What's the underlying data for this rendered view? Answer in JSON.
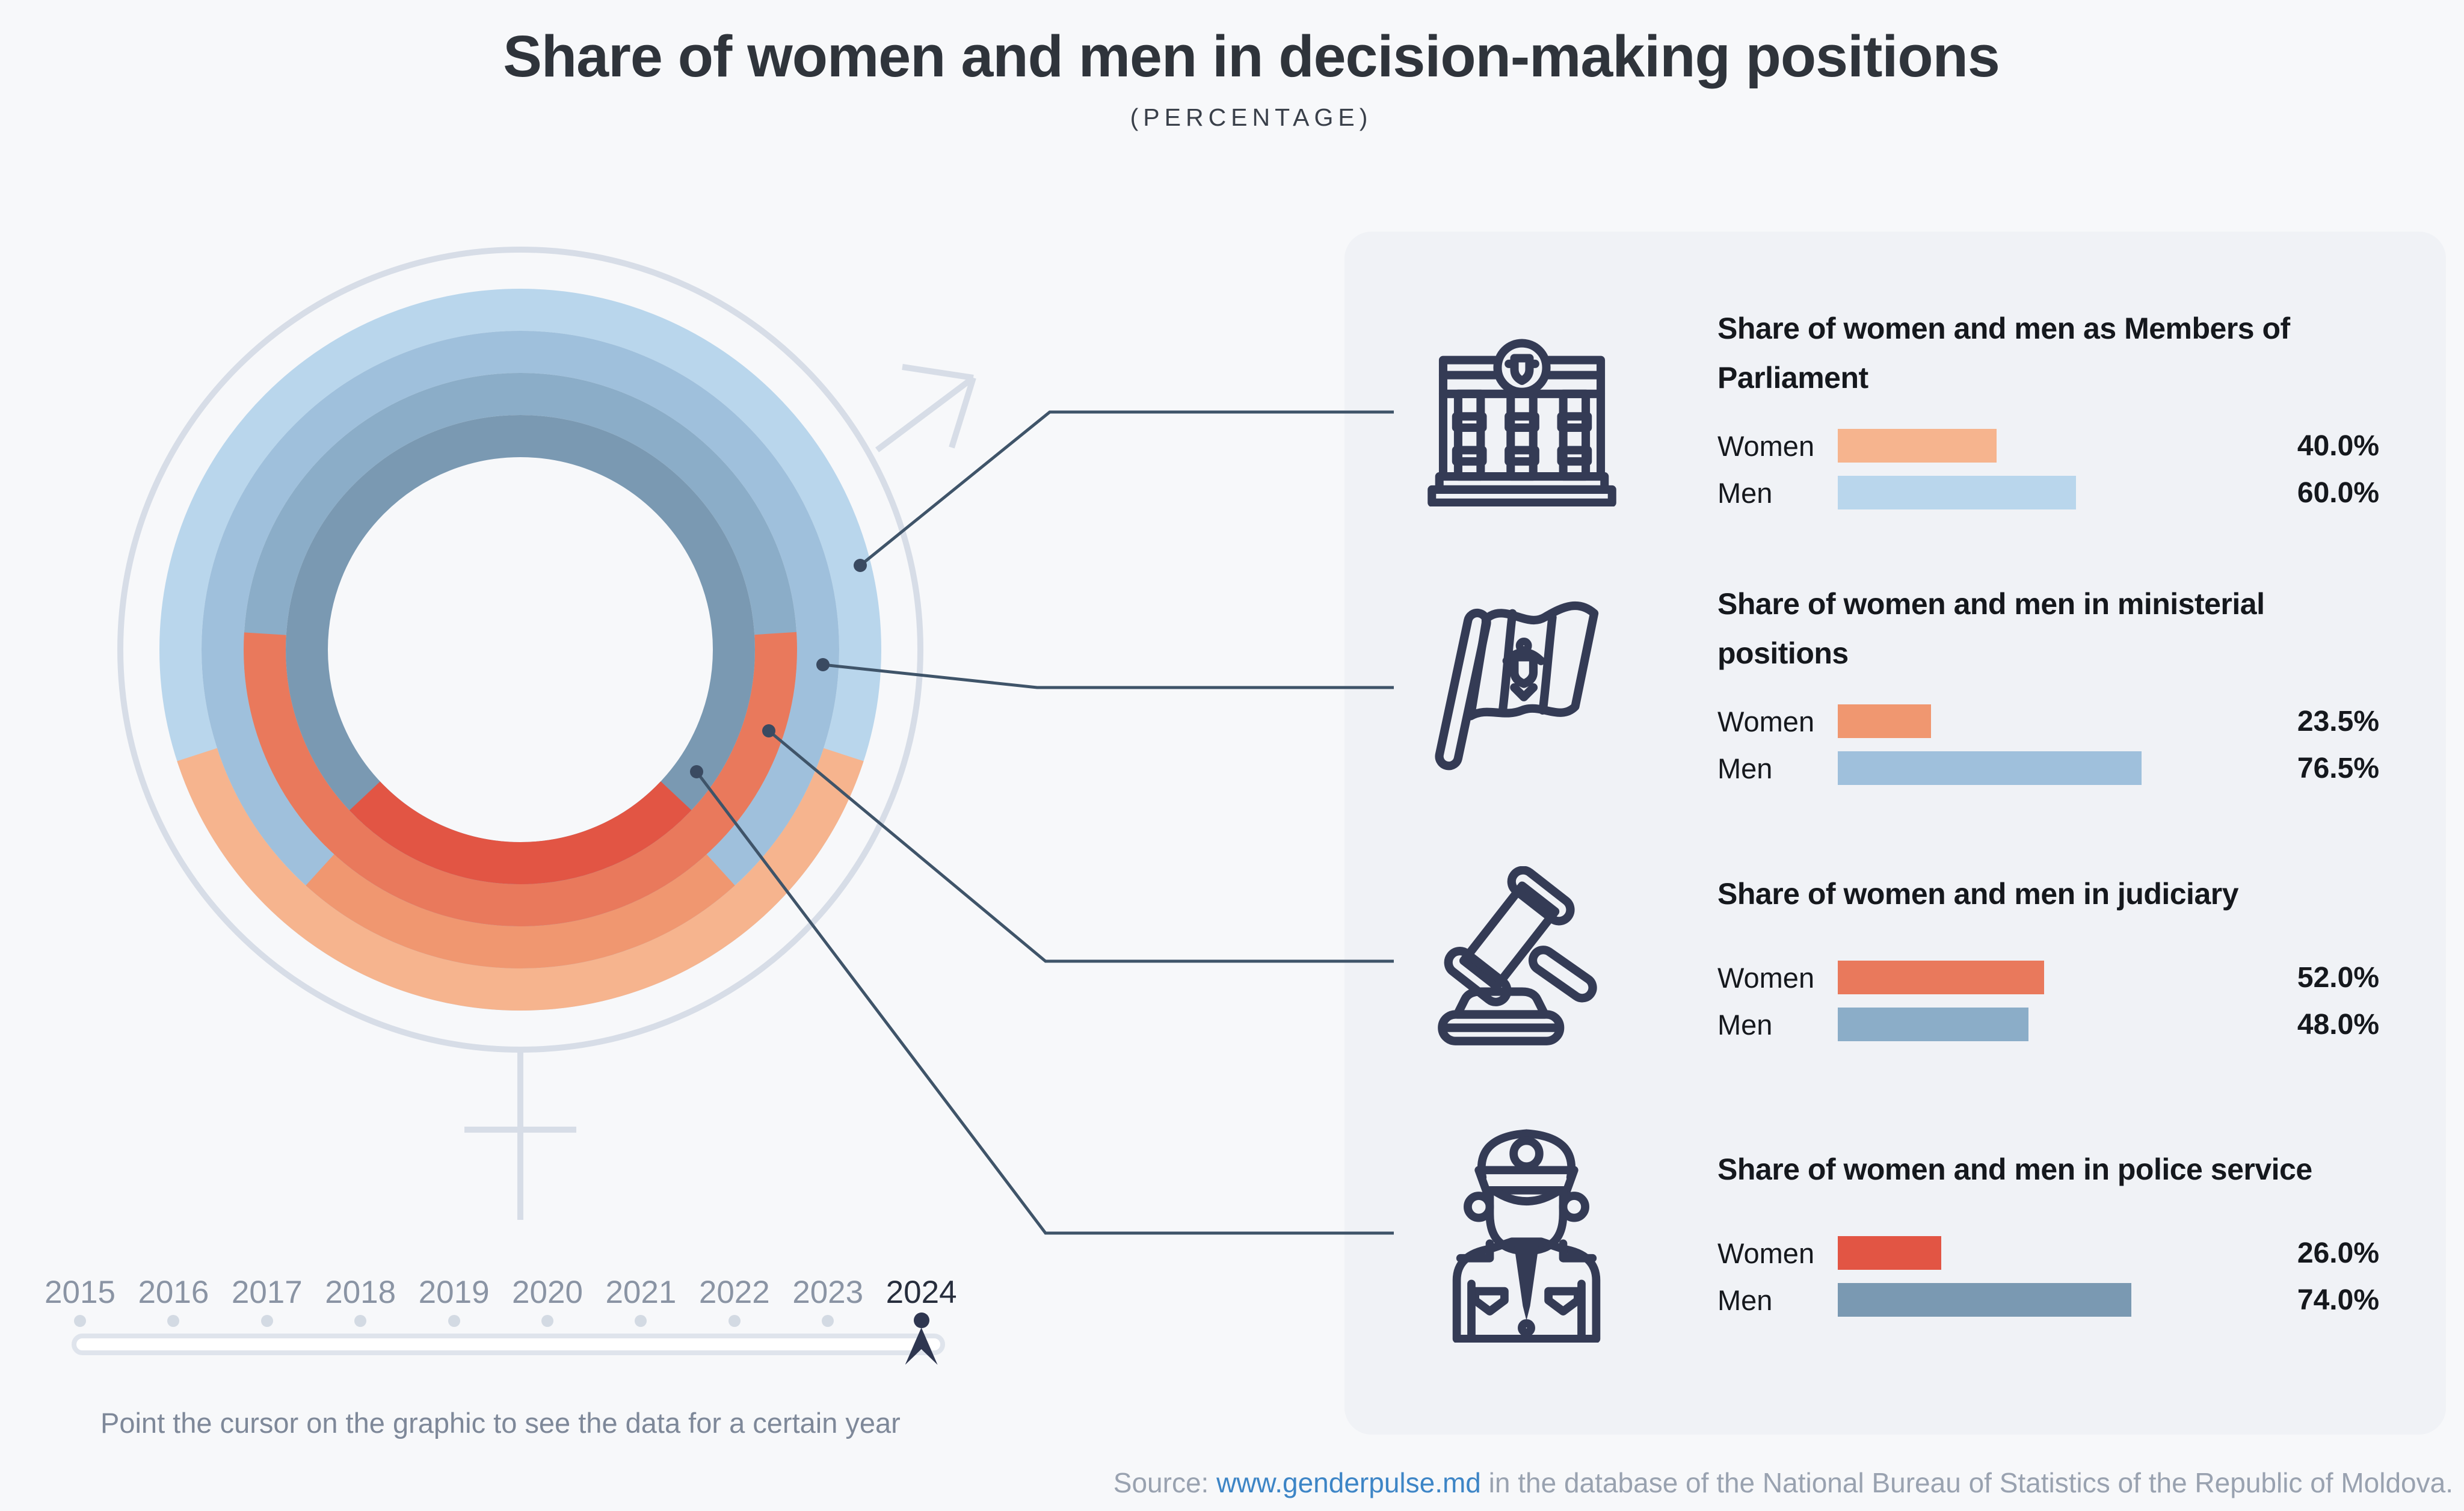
{
  "page": {
    "title": "Share of women and men in decision-making positions",
    "subtitle": "(PERCENTAGE)"
  },
  "labels": {
    "women": "Women",
    "men": "Men"
  },
  "colors": {
    "page_bg": "#f7f8fa",
    "panel_bg": "#f0f2f6",
    "icon_navy": "#343b55",
    "connector": "#3f5469",
    "symbol_gray": "#d7dde7",
    "selected_navy": "#2e3650",
    "muted_text": "#8a94a4",
    "link_blue": "#3d85c6"
  },
  "chart_data": {
    "type": "radial-multi-ring-donut-with-bars",
    "unit": "percent",
    "selected_year": "2024",
    "rings_outer_to_inner": [
      "parliament",
      "ministerial",
      "judiciary",
      "police"
    ],
    "women_segment_position": "centered-at-bottom",
    "categories": [
      {
        "id": "parliament",
        "title": "Share of women and men as Members of Parliament",
        "icon": "parliament-building-icon",
        "women": 40.0,
        "men": 60.0,
        "women_label": "40.0%",
        "men_label": "60.0%",
        "women_color": "#f6b48e",
        "men_color": "#b9d6ec"
      },
      {
        "id": "ministerial",
        "title": "Share of women and men in ministerial positions",
        "icon": "moldova-flag-icon",
        "women": 23.5,
        "men": 76.5,
        "women_label": "23.5%",
        "men_label": "76.5%",
        "women_color": "#f09770",
        "men_color": "#9fc0dc"
      },
      {
        "id": "judiciary",
        "title": "Share of women and men in judiciary",
        "icon": "gavel-icon",
        "women": 52.0,
        "men": 48.0,
        "women_label": "52.0%",
        "men_label": "48.0%",
        "women_color": "#e9795c",
        "men_color": "#8badc8"
      },
      {
        "id": "police",
        "title": "Share of women and men in police service",
        "icon": "police-officer-icon",
        "women": 26.0,
        "men": 74.0,
        "women_label": "26.0%",
        "men_label": "74.0%",
        "women_color": "#e25544",
        "men_color": "#7a99b2"
      }
    ]
  },
  "timeline": {
    "years": [
      "2015",
      "2016",
      "2017",
      "2018",
      "2019",
      "2020",
      "2021",
      "2022",
      "2023",
      "2024"
    ],
    "selected": "2024",
    "hint": "Point the cursor on the graphic to see the data for a certain year"
  },
  "source": {
    "label": "Source: ",
    "link": "www.genderpulse.md",
    "rest": " in the database of the National Bureau of Statistics of the Republic of Moldova."
  }
}
